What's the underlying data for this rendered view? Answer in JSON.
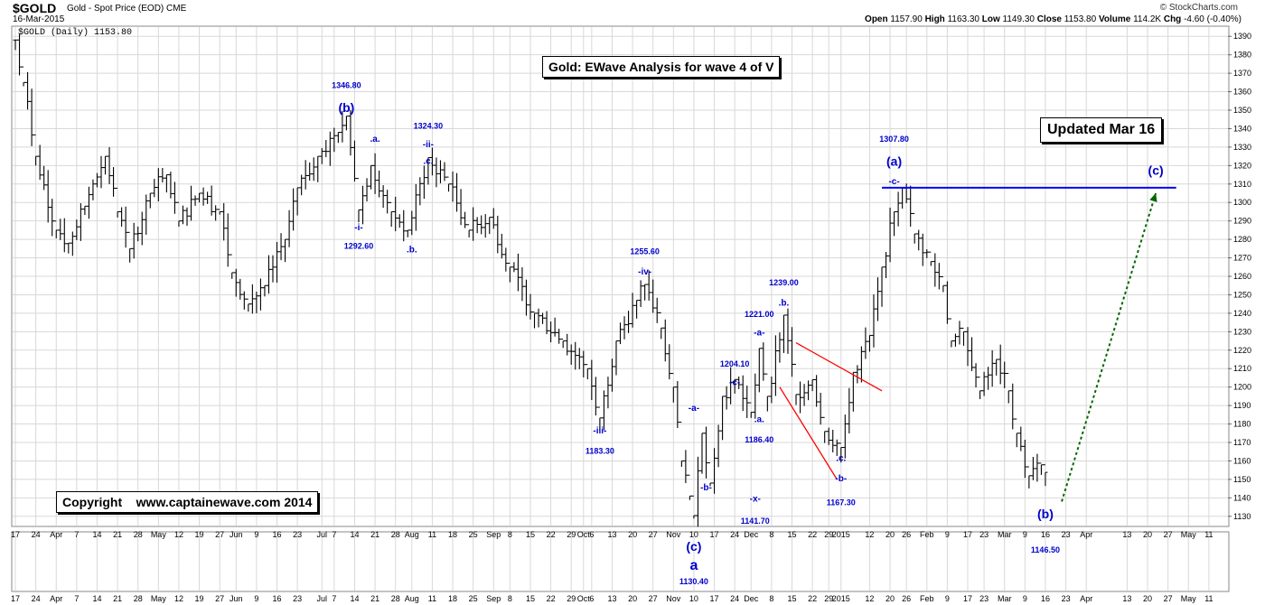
{
  "header": {
    "symbol": "$GOLD",
    "description": "Gold - Spot Price (EOD)",
    "exchange": "CME",
    "date": "16-Mar-2015",
    "copyright": "© StockCharts.com",
    "ohlc": {
      "open_label": "Open",
      "open": "1157.90",
      "high_label": "High",
      "high": "1163.30",
      "low_label": "Low",
      "low": "1149.30",
      "close_label": "Close",
      "close": "1153.80",
      "volume_label": "Volume",
      "volume": "114.2K",
      "chg_label": "Chg",
      "chg": "-4.60 (-0.40%)"
    },
    "legend": "$GOLD (Daily) 1153.80"
  },
  "annotations": {
    "title_box": "Gold: EWave Analysis for wave 4 of V",
    "updated_box": "Updated Mar 16",
    "copyright_box": "Copyright    www.captainewave.com 2014"
  },
  "colors": {
    "wave_labels": "#0000cc",
    "price_bars": "#000000",
    "grid": "#d8d8d8",
    "resistance_line": "#0000ff",
    "triangle": "#ff0000",
    "projection": "#006600"
  },
  "chart_data": {
    "type": "ohlc",
    "ylim": [
      1125,
      1395
    ],
    "y_ticks": [
      1130,
      1140,
      1150,
      1160,
      1170,
      1180,
      1190,
      1200,
      1210,
      1220,
      1230,
      1240,
      1250,
      1260,
      1270,
      1280,
      1290,
      1300,
      1310,
      1320,
      1330,
      1340,
      1350,
      1360,
      1370,
      1380,
      1390
    ],
    "x_ticks": [
      {
        "label": "17",
        "i": 0
      },
      {
        "label": "24",
        "i": 5
      },
      {
        "label": "Apr",
        "i": 10
      },
      {
        "label": "7",
        "i": 15
      },
      {
        "label": "14",
        "i": 20
      },
      {
        "label": "21",
        "i": 25
      },
      {
        "label": "28",
        "i": 30
      },
      {
        "label": "May",
        "i": 35
      },
      {
        "label": "12",
        "i": 40
      },
      {
        "label": "19",
        "i": 45
      },
      {
        "label": "27",
        "i": 50
      },
      {
        "label": "Jun",
        "i": 54
      },
      {
        "label": "9",
        "i": 59
      },
      {
        "label": "16",
        "i": 64
      },
      {
        "label": "23",
        "i": 69
      },
      {
        "label": "Jul",
        "i": 75
      },
      {
        "label": "7",
        "i": 78
      },
      {
        "label": "14",
        "i": 83
      },
      {
        "label": "21",
        "i": 88
      },
      {
        "label": "28",
        "i": 93
      },
      {
        "label": "Aug",
        "i": 97
      },
      {
        "label": "11",
        "i": 102
      },
      {
        "label": "18",
        "i": 107
      },
      {
        "label": "25",
        "i": 112
      },
      {
        "label": "Sep",
        "i": 117
      },
      {
        "label": "8",
        "i": 121
      },
      {
        "label": "15",
        "i": 126
      },
      {
        "label": "22",
        "i": 131
      },
      {
        "label": "29",
        "i": 136
      },
      {
        "label": "Oct",
        "i": 139
      },
      {
        "label": "6",
        "i": 141
      },
      {
        "label": "13",
        "i": 146
      },
      {
        "label": "20",
        "i": 151
      },
      {
        "label": "27",
        "i": 156
      },
      {
        "label": "Nov",
        "i": 161
      },
      {
        "label": "10",
        "i": 166
      },
      {
        "label": "17",
        "i": 171
      },
      {
        "label": "24",
        "i": 176
      },
      {
        "label": "Dec",
        "i": 180
      },
      {
        "label": "8",
        "i": 185
      },
      {
        "label": "15",
        "i": 190
      },
      {
        "label": "22",
        "i": 195
      },
      {
        "label": "29",
        "i": 199
      },
      {
        "label": "2015",
        "i": 202
      },
      {
        "label": "12",
        "i": 209
      },
      {
        "label": "20",
        "i": 214
      },
      {
        "label": "26",
        "i": 218
      },
      {
        "label": "Feb",
        "i": 223
      },
      {
        "label": "9",
        "i": 228
      },
      {
        "label": "17",
        "i": 233
      },
      {
        "label": "23",
        "i": 237
      },
      {
        "label": "Mar",
        "i": 242
      },
      {
        "label": "9",
        "i": 247
      },
      {
        "label": "16",
        "i": 252
      },
      {
        "label": "23",
        "i": 257
      },
      {
        "label": "Apr",
        "i": 262
      },
      {
        "label": "13",
        "i": 272
      },
      {
        "label": "20",
        "i": 277
      },
      {
        "label": "27",
        "i": 282
      },
      {
        "label": "May",
        "i": 287
      },
      {
        "label": "11",
        "i": 292
      }
    ],
    "pivots": [
      {
        "i": 0,
        "p": 1388
      },
      {
        "i": 2,
        "p": 1365
      },
      {
        "i": 5,
        "p": 1325
      },
      {
        "i": 10,
        "p": 1285
      },
      {
        "i": 13,
        "p": 1278
      },
      {
        "i": 17,
        "p": 1298
      },
      {
        "i": 22,
        "p": 1325
      },
      {
        "i": 25,
        "p": 1295
      },
      {
        "i": 28,
        "p": 1275
      },
      {
        "i": 33,
        "p": 1305
      },
      {
        "i": 37,
        "p": 1315
      },
      {
        "i": 40,
        "p": 1290
      },
      {
        "i": 45,
        "p": 1305
      },
      {
        "i": 50,
        "p": 1295
      },
      {
        "i": 53,
        "p": 1262
      },
      {
        "i": 57,
        "p": 1245
      },
      {
        "i": 61,
        "p": 1255
      },
      {
        "i": 66,
        "p": 1280
      },
      {
        "i": 69,
        "p": 1308
      },
      {
        "i": 74,
        "p": 1325
      },
      {
        "i": 79,
        "p": 1338
      },
      {
        "i": 81,
        "p": 1346.8
      },
      {
        "i": 84,
        "p": 1296
      },
      {
        "i": 87,
        "p": 1320
      },
      {
        "i": 92,
        "p": 1295
      },
      {
        "i": 96,
        "p": 1285
      },
      {
        "i": 101,
        "p": 1324.3
      },
      {
        "i": 106,
        "p": 1310
      },
      {
        "i": 111,
        "p": 1285
      },
      {
        "i": 116,
        "p": 1292
      },
      {
        "i": 121,
        "p": 1265
      },
      {
        "i": 127,
        "p": 1240
      },
      {
        "i": 134,
        "p": 1225
      },
      {
        "i": 140,
        "p": 1210
      },
      {
        "i": 143,
        "p": 1183.3
      },
      {
        "i": 147,
        "p": 1225
      },
      {
        "i": 152,
        "p": 1247
      },
      {
        "i": 154,
        "p": 1255.6
      },
      {
        "i": 158,
        "p": 1232
      },
      {
        "i": 161,
        "p": 1200
      },
      {
        "i": 163,
        "p": 1160
      },
      {
        "i": 165,
        "p": 1141
      },
      {
        "i": 166,
        "p": 1130.4
      },
      {
        "i": 168,
        "p": 1175
      },
      {
        "i": 170,
        "p": 1148
      },
      {
        "i": 173,
        "p": 1195
      },
      {
        "i": 176,
        "p": 1204.1
      },
      {
        "i": 180,
        "p": 1186.4
      },
      {
        "i": 182,
        "p": 1221
      },
      {
        "i": 184,
        "p": 1195
      },
      {
        "i": 188,
        "p": 1239
      },
      {
        "i": 191,
        "p": 1196
      },
      {
        "i": 195,
        "p": 1204
      },
      {
        "i": 198,
        "p": 1176
      },
      {
        "i": 202,
        "p": 1167.3
      },
      {
        "i": 205,
        "p": 1208
      },
      {
        "i": 209,
        "p": 1228
      },
      {
        "i": 212,
        "p": 1265
      },
      {
        "i": 215,
        "p": 1295
      },
      {
        "i": 217,
        "p": 1307.8
      },
      {
        "i": 220,
        "p": 1283
      },
      {
        "i": 224,
        "p": 1268
      },
      {
        "i": 227,
        "p": 1255
      },
      {
        "i": 229,
        "p": 1225
      },
      {
        "i": 232,
        "p": 1230
      },
      {
        "i": 236,
        "p": 1198
      },
      {
        "i": 240,
        "p": 1215
      },
      {
        "i": 243,
        "p": 1198
      },
      {
        "i": 245,
        "p": 1175
      },
      {
        "i": 248,
        "p": 1152
      },
      {
        "i": 251,
        "p": 1157.9
      },
      {
        "i": 252,
        "p": 1153.8
      }
    ],
    "resistance_line": {
      "from_i": 212,
      "to_i": 284,
      "y": 1308
    },
    "triangle_lines": [
      {
        "from": {
          "i": 191,
          "p": 1224
        },
        "to": {
          "i": 212,
          "p": 1198
        }
      },
      {
        "from": {
          "i": 187,
          "p": 1200
        },
        "to": {
          "i": 201,
          "p": 1150
        }
      }
    ],
    "projection": {
      "from": {
        "i": 256,
        "p": 1138
      },
      "to": {
        "i": 279,
        "p": 1305
      }
    },
    "wave_labels": [
      {
        "text": "1346.80",
        "i": 81,
        "p": 1362,
        "size": 9
      },
      {
        "text": "(b)",
        "i": 81,
        "p": 1349,
        "size": 14
      },
      {
        "text": ".a.",
        "i": 88,
        "p": 1333,
        "size": 10
      },
      {
        "text": "-i-",
        "i": 84,
        "p": 1285,
        "size": 10
      },
      {
        "text": "1292.60",
        "i": 84,
        "p": 1275,
        "size": 9
      },
      {
        "text": ".b.",
        "i": 97,
        "p": 1273,
        "size": 10
      },
      {
        "text": "1324.30",
        "i": 101,
        "p": 1340,
        "size": 9
      },
      {
        "text": "-ii-",
        "i": 101,
        "p": 1330,
        "size": 10
      },
      {
        "text": ".c.",
        "i": 101,
        "p": 1321,
        "size": 10
      },
      {
        "text": "-iii-",
        "i": 143,
        "p": 1175,
        "size": 10
      },
      {
        "text": "1183.30",
        "i": 143,
        "p": 1164,
        "size": 9
      },
      {
        "text": "1255.60",
        "i": 154,
        "p": 1272,
        "size": 9
      },
      {
        "text": "-iv-",
        "i": 154,
        "p": 1261,
        "size": 10
      },
      {
        "text": "1204.10",
        "i": 176,
        "p": 1211,
        "size": 9
      },
      {
        "text": "-c-",
        "i": 176,
        "p": 1201,
        "size": 10
      },
      {
        "text": "1221.00",
        "i": 182,
        "p": 1238,
        "size": 9
      },
      {
        "text": "-a-",
        "i": 182,
        "p": 1228,
        "size": 10
      },
      {
        "text": ".a.",
        "i": 182,
        "p": 1181,
        "size": 10
      },
      {
        "text": "1186.40",
        "i": 182,
        "p": 1170,
        "size": 9
      },
      {
        "text": "1239.00",
        "i": 188,
        "p": 1255,
        "size": 9
      },
      {
        "text": ".b.",
        "i": 188,
        "p": 1244,
        "size": 10
      },
      {
        "text": "-a-",
        "i": 166,
        "p": 1187,
        "size": 10
      },
      {
        "text": "-b-",
        "i": 169,
        "p": 1144,
        "size": 10
      },
      {
        "text": "-x-",
        "i": 181,
        "p": 1138,
        "size": 10
      },
      {
        "text": "1141.70",
        "i": 181,
        "p": 1126,
        "size": 9
      },
      {
        "text": ".c.",
        "i": 202,
        "p": 1160,
        "size": 10
      },
      {
        "text": "-b-",
        "i": 202,
        "p": 1149,
        "size": 10
      },
      {
        "text": "1167.30",
        "i": 202,
        "p": 1136,
        "size": 9
      },
      {
        "text": "1307.80",
        "i": 215,
        "p": 1333,
        "size": 9
      },
      {
        "text": "(a)",
        "i": 215,
        "p": 1320,
        "size": 14
      },
      {
        "text": "-c-",
        "i": 215,
        "p": 1310,
        "size": 10
      },
      {
        "text": "(c)",
        "i": 279,
        "p": 1315,
        "size": 14
      },
      {
        "text": "(b)",
        "i": 252,
        "p": 1129,
        "size": 14
      }
    ],
    "bottom_labels": [
      {
        "text": "(c)",
        "i": 166,
        "y": 610,
        "size": 14
      },
      {
        "text": "a",
        "i": 166,
        "y": 631,
        "size": 16
      },
      {
        "text": "1130.40",
        "i": 166,
        "y": 647,
        "size": 9
      },
      {
        "text": "1146.50",
        "i": 252,
        "y": 612,
        "size": 9
      }
    ]
  }
}
